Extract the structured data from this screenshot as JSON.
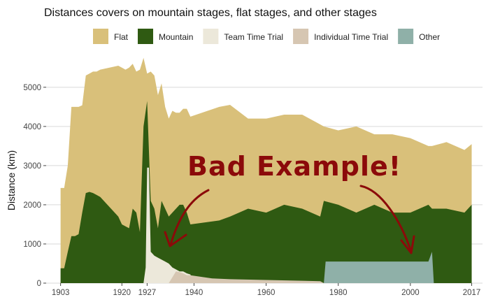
{
  "chart_data": {
    "type": "area",
    "title": "Distances covers on mountain stages, flat stages, and other stages",
    "xlabel": "",
    "ylabel": "Distance (km)",
    "xlim": [
      1899,
      2020
    ],
    "ylim": [
      0,
      5800
    ],
    "x_ticks": [
      1903,
      1920,
      1927,
      1940,
      1960,
      1980,
      2000,
      2017
    ],
    "y_ticks": [
      0,
      1000,
      2000,
      3000,
      4000,
      5000
    ],
    "grid": "horizontal",
    "legend_position": "top",
    "stacked": true,
    "annotation": "Bad Example!",
    "series": [
      {
        "name": "Flat",
        "color": "#d9c07a",
        "x": [
          1903,
          1904,
          1905,
          1906,
          1907,
          1908,
          1909,
          1910,
          1911,
          1912,
          1913,
          1914,
          1919,
          1920,
          1921,
          1922,
          1923,
          1924,
          1925,
          1926,
          1927,
          1928,
          1929,
          1930,
          1931,
          1932,
          1933,
          1934,
          1935,
          1936,
          1937,
          1938,
          1939,
          1947,
          1950,
          1955,
          1960,
          1965,
          1970,
          1975,
          1976,
          1980,
          1985,
          1990,
          1995,
          2000,
          2005,
          2006,
          2010,
          2015,
          2017
        ],
        "top": [
          2430,
          2430,
          3000,
          4500,
          4500,
          4500,
          4540,
          5300,
          5350,
          5400,
          5400,
          5450,
          5550,
          5500,
          5450,
          5500,
          5600,
          5400,
          5450,
          5750,
          5350,
          5400,
          5300,
          4800,
          5100,
          4500,
          4200,
          4400,
          4350,
          4350,
          4450,
          4450,
          4250,
          4500,
          4550,
          4200,
          4200,
          4300,
          4300,
          4050,
          4000,
          3900,
          4000,
          3800,
          3800,
          3700,
          3500,
          3500,
          3600,
          3400,
          3550
        ]
      },
      {
        "name": "Mountain",
        "color": "#2f5a12",
        "x": [
          1903,
          1904,
          1905,
          1906,
          1907,
          1908,
          1909,
          1910,
          1911,
          1912,
          1913,
          1914,
          1919,
          1920,
          1921,
          1922,
          1923,
          1924,
          1925,
          1926,
          1927,
          1928,
          1929,
          1930,
          1931,
          1932,
          1933,
          1934,
          1935,
          1936,
          1937,
          1938,
          1939,
          1947,
          1950,
          1955,
          1960,
          1965,
          1970,
          1975,
          1976,
          1980,
          1985,
          1990,
          1995,
          2000,
          2005,
          2006,
          2010,
          2015,
          2017
        ],
        "top": [
          380,
          380,
          800,
          1200,
          1200,
          1250,
          1800,
          2300,
          2330,
          2300,
          2250,
          2200,
          1700,
          1500,
          1450,
          1400,
          1900,
          1800,
          1300,
          4000,
          4650,
          2100,
          1900,
          1400,
          2100,
          1900,
          1700,
          1800,
          1900,
          2000,
          2000,
          1800,
          1500,
          1600,
          1700,
          1900,
          1800,
          2000,
          1900,
          1700,
          2100,
          2000,
          1800,
          2000,
          1800,
          1800,
          2000,
          1900,
          1900,
          1800,
          2000
        ]
      },
      {
        "name": "Team Time Trial",
        "color": "#ece8da",
        "x": [
          1903,
          1926,
          1926.6,
          1927,
          1927.5,
          1928,
          1929,
          1930,
          1931,
          1932,
          1933,
          1934,
          1935,
          1936,
          1937,
          1938,
          1939,
          1940,
          2017
        ],
        "top": [
          0,
          0,
          400,
          2950,
          2950,
          800,
          700,
          650,
          600,
          550,
          500,
          400,
          350,
          300,
          300,
          250,
          220,
          0,
          0
        ]
      },
      {
        "name": "Individual Time Trial",
        "color": "#d6c6b2",
        "x": [
          1903,
          1933,
          1934,
          1935,
          1936,
          1937,
          1938,
          1939,
          1945,
          1950,
          1960,
          1970,
          1975,
          1976,
          2017
        ],
        "top": [
          0,
          0,
          150,
          300,
          280,
          250,
          200,
          200,
          120,
          100,
          80,
          60,
          50,
          0,
          0
        ]
      },
      {
        "name": "Other",
        "color": "#8fb0a8",
        "x": [
          1903,
          1976,
          1976.5,
          2005,
          2006,
          2006.5,
          2017
        ],
        "top": [
          0,
          0,
          550,
          550,
          800,
          0,
          0
        ]
      }
    ]
  }
}
